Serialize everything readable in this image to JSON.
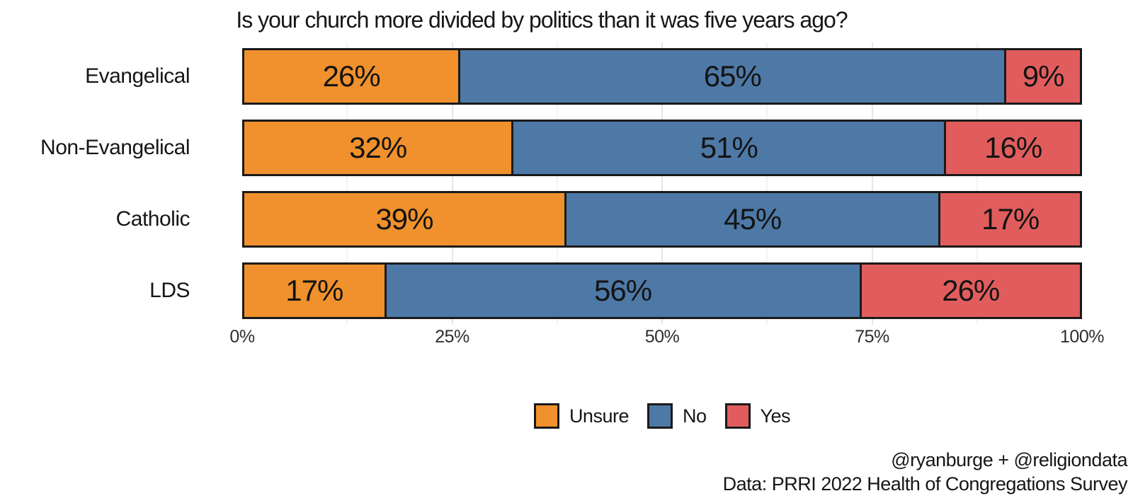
{
  "chart_data": {
    "type": "bar",
    "orientation": "horizontal",
    "stacked": true,
    "title": "Is your church more divided by politics than it was five years ago?",
    "categories": [
      "Evangelical",
      "Non-Evangelical",
      "Catholic",
      "LDS"
    ],
    "series": [
      {
        "name": "Unsure",
        "color": "#F0912D",
        "values": [
          26,
          32,
          39,
          17
        ]
      },
      {
        "name": "No",
        "color": "#4E79A7",
        "values": [
          65,
          51,
          45,
          56
        ]
      },
      {
        "name": "Yes",
        "color": "#E15D5D",
        "values": [
          9,
          16,
          17,
          26
        ]
      }
    ],
    "bar_label_suffix": "%",
    "xlabel": "",
    "ylabel": "",
    "xlim": [
      0,
      100
    ],
    "x_tick_labels": [
      "0%",
      "25%",
      "50%",
      "75%",
      "100%"
    ],
    "x_tick_values": [
      0,
      25,
      50,
      75,
      100
    ],
    "grid": {
      "on": true,
      "major_every": 25,
      "minor_every": 12.5
    },
    "legend": {
      "position": "bottom-center",
      "labels": [
        "Unsure",
        "No",
        "Yes"
      ]
    }
  },
  "caption": {
    "line1": "@ryanburge + @religiondata",
    "line2": "Data: PRRI 2022 Health of Congregations Survey"
  },
  "colors": {
    "bar_border": "#1a1a1a",
    "grid_major": "#e6e6e6",
    "grid_minor": "#f2f2f2",
    "background": "#ffffff",
    "text": "#161616"
  }
}
